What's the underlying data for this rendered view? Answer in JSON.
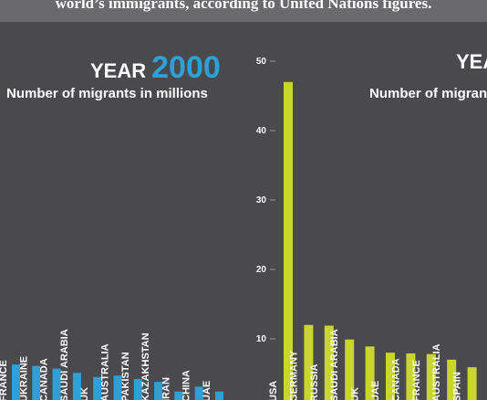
{
  "intro": "world’s immigrants, according to United Nations figures.",
  "chart_data": [
    {
      "type": "bar",
      "title": "YEAR",
      "title_number": "2000",
      "subtitle": "Number of migrants in millions",
      "bar_color": "#2f9fd8",
      "number_color": "#2f9fd8",
      "categories": [
        "FRANCE",
        "UKRAINE",
        "CANADA",
        "SAUDI ARABIA",
        "UK",
        "AUSTRALIA",
        "PAKISTAN",
        "KAZAKHSTAN",
        "IRAN",
        "CHINA",
        "UAE"
      ],
      "values": [
        6.3,
        6.1,
        5.7,
        5.1,
        4.5,
        4.7,
        4.2,
        3.8,
        2.4,
        3.1,
        2.4
      ],
      "ylim": [
        0,
        50
      ]
    },
    {
      "type": "bar",
      "title": "YEAR",
      "subtitle": "Number of migrants in millions",
      "bar_color": "#c9d62c",
      "categories": [
        "USA",
        "GERMANY",
        "RUSSIA",
        "SAUDI ARABIA",
        "UK",
        "UAE",
        "CANADA",
        "FRANCE",
        "AUSTRALIA",
        "SPAIN",
        ""
      ],
      "values": [
        47.0,
        12.0,
        11.9,
        9.9,
        8.9,
        8.0,
        7.9,
        7.8,
        7.0,
        5.9,
        6.2
      ],
      "yticks": [
        10,
        20,
        30,
        40,
        50
      ],
      "ylim": [
        0,
        50
      ]
    }
  ]
}
